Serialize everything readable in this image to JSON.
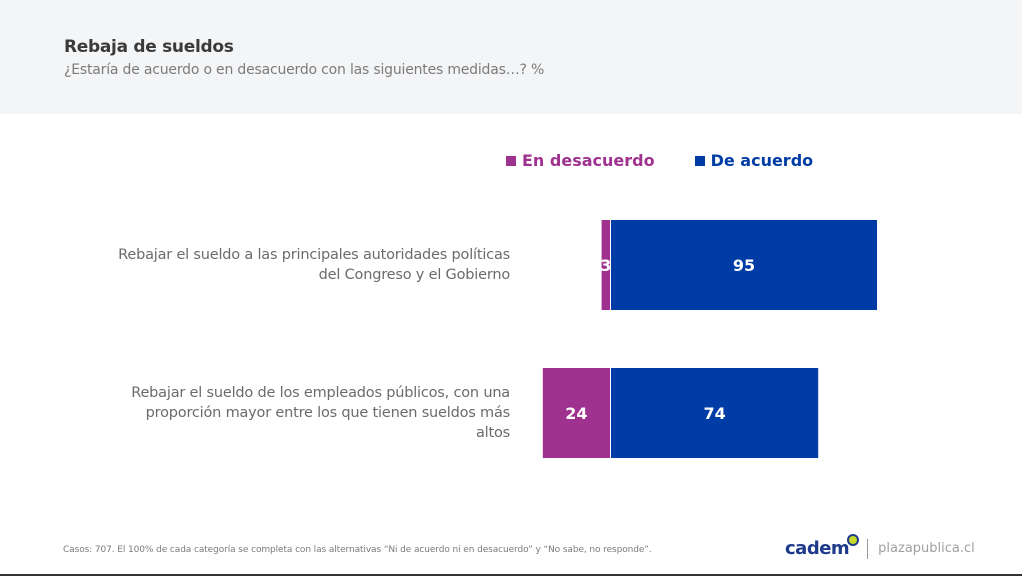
{
  "header": {
    "title": "Rebaja de sueldos",
    "subtitle": "¿Estaría de acuerdo o en desacuerdo con las siguientes medidas…? %"
  },
  "chart_data": {
    "type": "bar",
    "orientation": "horizontal-diverging",
    "title": "Rebaja de sueldos",
    "subtitle": "¿Estaría de acuerdo o en desacuerdo con las siguientes medidas…? %",
    "categories": [
      "Rebajar el sueldo a las principales autoridades políticas del Congreso y el Gobierno",
      "Rebajar el sueldo de los empleados públicos, con una proporción mayor entre los que tienen sueldos más altos"
    ],
    "series": [
      {
        "name": "En desacuerdo",
        "color": "#a0328f",
        "values": [
          3,
          24
        ]
      },
      {
        "name": "De acuerdo",
        "color": "#003ca6",
        "values": [
          95,
          74
        ]
      }
    ],
    "legend": "top",
    "grid": false,
    "unit": "%"
  },
  "footer": {
    "note": "Casos: 707. El 100% de cada categoría se completa con las alternativas “Ni de acuerdo ni en desacuerdo” y “No sabe, no responde”.",
    "brand": "cadem",
    "site": "plazapublica.cl"
  }
}
